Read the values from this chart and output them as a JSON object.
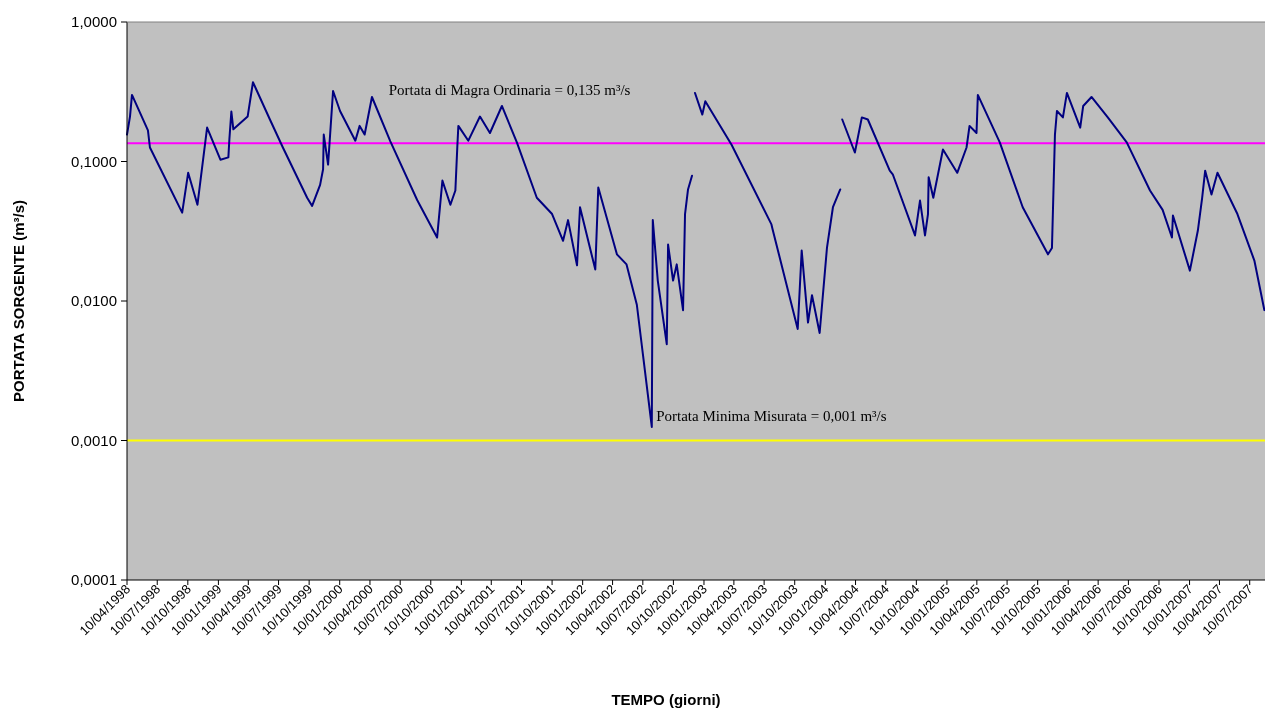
{
  "chart_data": {
    "type": "line",
    "xlabel": "TEMPO (giorni)",
    "ylabel": "PORTATA SORGENTE  (m³/s)",
    "log": true,
    "ylim": [
      0.0001,
      1
    ],
    "yticks": [
      {
        "value": 0.0001,
        "label": "0,0001"
      },
      {
        "value": 0.001,
        "label": "0,0010"
      },
      {
        "value": 0.01,
        "label": "0,0100"
      },
      {
        "value": 0.1,
        "label": "0,1000"
      },
      {
        "value": 1,
        "label": "1,0000"
      }
    ],
    "xlim": [
      "1998-04-10",
      "2007-08-25"
    ],
    "xticks": [
      {
        "value": "1998-04-10",
        "label": "10/04/1998"
      },
      {
        "value": "1998-07-10",
        "label": "10/07/1998"
      },
      {
        "value": "1998-10-10",
        "label": "10/10/1998"
      },
      {
        "value": "1999-01-10",
        "label": "10/01/1999"
      },
      {
        "value": "1999-04-10",
        "label": "10/04/1999"
      },
      {
        "value": "1999-07-10",
        "label": "10/07/1999"
      },
      {
        "value": "1999-10-10",
        "label": "10/10/1999"
      },
      {
        "value": "2000-01-10",
        "label": "10/01/2000"
      },
      {
        "value": "2000-04-10",
        "label": "10/04/2000"
      },
      {
        "value": "2000-07-10",
        "label": "10/07/2000"
      },
      {
        "value": "2000-10-10",
        "label": "10/10/2000"
      },
      {
        "value": "2001-01-10",
        "label": "10/01/2001"
      },
      {
        "value": "2001-04-10",
        "label": "10/04/2001"
      },
      {
        "value": "2001-07-10",
        "label": "10/07/2001"
      },
      {
        "value": "2001-10-10",
        "label": "10/10/2001"
      },
      {
        "value": "2002-01-10",
        "label": "10/01/2002"
      },
      {
        "value": "2002-04-10",
        "label": "10/04/2002"
      },
      {
        "value": "2002-07-10",
        "label": "10/07/2002"
      },
      {
        "value": "2002-10-10",
        "label": "10/10/2002"
      },
      {
        "value": "2003-01-10",
        "label": "10/01/2003"
      },
      {
        "value": "2003-04-10",
        "label": "10/04/2003"
      },
      {
        "value": "2003-07-10",
        "label": "10/07/2003"
      },
      {
        "value": "2003-10-10",
        "label": "10/10/2003"
      },
      {
        "value": "2004-01-10",
        "label": "10/01/2004"
      },
      {
        "value": "2004-04-10",
        "label": "10/04/2004"
      },
      {
        "value": "2004-07-10",
        "label": "10/07/2004"
      },
      {
        "value": "2004-10-10",
        "label": "10/10/2004"
      },
      {
        "value": "2005-01-10",
        "label": "10/01/2005"
      },
      {
        "value": "2005-04-10",
        "label": "10/04/2005"
      },
      {
        "value": "2005-07-10",
        "label": "10/07/2005"
      },
      {
        "value": "2005-10-10",
        "label": "10/10/2005"
      },
      {
        "value": "2006-01-10",
        "label": "10/01/2006"
      },
      {
        "value": "2006-04-10",
        "label": "10/04/2006"
      },
      {
        "value": "2006-07-10",
        "label": "10/07/2006"
      },
      {
        "value": "2006-10-10",
        "label": "10/10/2006"
      },
      {
        "value": "2007-01-10",
        "label": "10/01/2007"
      },
      {
        "value": "2007-04-10",
        "label": "10/04/2007"
      },
      {
        "value": "2007-07-10",
        "label": "10/07/2007"
      }
    ],
    "ref_lines": [
      {
        "axis": "y",
        "value": 0.135,
        "label": "Portata di Magra Ordinaria = 0,135 m³/s",
        "color": "#ff00ff"
      },
      {
        "axis": "y",
        "value": 0.001,
        "label": "Portata Minima Misurata = 0,001 m³/s",
        "color": "#ffff00"
      }
    ],
    "series": [
      {
        "color": "#000080",
        "x": [
          "1998-04-10",
          "1998-04-19",
          "1998-04-25",
          "1998-06-12",
          "1998-06-18",
          "1998-09-23",
          "1998-10-11",
          "1998-11-08",
          "1998-12-07",
          "1999-01-16",
          "1999-02-09",
          "1999-02-12",
          "1999-02-18",
          "1999-02-24",
          "1999-04-08",
          "1999-04-24",
          "1999-06-14",
          "1999-07-23",
          "1999-10-04",
          "1999-10-19",
          "1999-11-12",
          "1999-11-21",
          "1999-11-23",
          "1999-12-06",
          "1999-12-21",
          "2000-01-11",
          "2000-02-26",
          "2000-03-10",
          "2000-03-25",
          "2000-04-16",
          "2000-06-10",
          "2000-08-30",
          "2000-10-29",
          "2000-11-14",
          "2000-12-08",
          "2000-12-23",
          "2000-12-29",
          "2001-01-01",
          "2001-01-31",
          "2001-03-07",
          "2001-04-06",
          "2001-05-12",
          "2001-06-26",
          "2001-08-25",
          "2001-10-10",
          "2001-11-12",
          "2001-11-27",
          "2001-12-24",
          "2002-01-02",
          "2002-02-17",
          "2002-02-26",
          "2002-04-23",
          "2002-05-22",
          "2002-06-22",
          "2002-07-10",
          "2002-08-06",
          "2002-08-09",
          "2002-08-24",
          "2002-09-20",
          "2002-09-24",
          "2002-10-09",
          "2002-10-20",
          "2002-11-08",
          "2002-11-14",
          "2002-11-23",
          "2002-12-05",
          "2002-12-10",
          "2002-12-14",
          "2003-01-05",
          "2003-01-14",
          "2003-04-03",
          "2003-08-01",
          "2003-08-04",
          "2003-10-19",
          "2003-10-31",
          "2003-11-19",
          "2003-12-01",
          "2003-12-24",
          "2004-01-15",
          "2004-02-02",
          "2004-02-24",
          "2004-02-27",
          "2004-03-01",
          "2004-04-08",
          "2004-04-29",
          "2004-05-17",
          "2004-07-22",
          "2004-07-31",
          "2004-10-06",
          "2004-10-21",
          "2004-11-05",
          "2004-11-14",
          "2004-11-16",
          "2004-11-30",
          "2004-12-29",
          "2005-02-10",
          "2005-03-10",
          "2005-03-19",
          "2005-04-09",
          "2005-04-13",
          "2005-06-18",
          "2005-08-26",
          "2005-11-10",
          "2005-11-22",
          "2005-12-01",
          "2005-12-07",
          "2005-12-25",
          "2006-01-06",
          "2006-02-15",
          "2006-02-24",
          "2006-03-21",
          "2006-05-09",
          "2006-07-05",
          "2006-09-13",
          "2006-10-21",
          "2006-11-18",
          "2006-11-21",
          "2007-01-11",
          "2007-02-04",
          "2007-02-17",
          "2007-02-26",
          "2007-03-17",
          "2007-04-04",
          "2007-06-03",
          "2007-07-24",
          "2007-08-23"
        ],
        "values": [
          0.156,
          0.21,
          0.3,
          0.167,
          0.126,
          0.043,
          0.083,
          0.049,
          0.175,
          0.103,
          0.107,
          0.144,
          0.228,
          0.17,
          0.21,
          0.37,
          0.2,
          0.126,
          0.055,
          0.048,
          0.068,
          0.088,
          0.156,
          0.095,
          0.32,
          0.23,
          0.141,
          0.18,
          0.156,
          0.29,
          0.14,
          0.053,
          0.0285,
          0.073,
          0.049,
          0.062,
          0.13,
          0.18,
          0.141,
          0.21,
          0.16,
          0.25,
          0.137,
          0.055,
          0.042,
          0.027,
          0.038,
          0.018,
          0.047,
          0.0168,
          0.065,
          0.0216,
          0.0183,
          0.0094,
          0.0042,
          0.00125,
          0.038,
          0.014,
          0.0049,
          0.0254,
          0.014,
          0.0183,
          0.0086,
          0.042,
          0.063,
          0.079,
          null,
          0.31,
          0.217,
          0.27,
          0.132,
          0.0354,
          0.033,
          0.0063,
          0.023,
          0.007,
          0.011,
          0.0059,
          0.024,
          0.047,
          0.063,
          null,
          0.2,
          0.116,
          0.207,
          0.2,
          0.086,
          0.081,
          0.0295,
          0.0525,
          0.0295,
          0.042,
          0.077,
          0.055,
          0.122,
          0.083,
          0.126,
          0.18,
          0.16,
          0.3,
          0.137,
          0.047,
          0.0216,
          0.024,
          0.156,
          0.23,
          0.207,
          0.31,
          0.175,
          0.25,
          0.29,
          0.207,
          0.137,
          0.062,
          0.045,
          0.0285,
          0.041,
          0.0165,
          0.032,
          0.055,
          0.086,
          0.058,
          0.083,
          0.042,
          0.0195,
          0.0086
        ]
      }
    ]
  }
}
